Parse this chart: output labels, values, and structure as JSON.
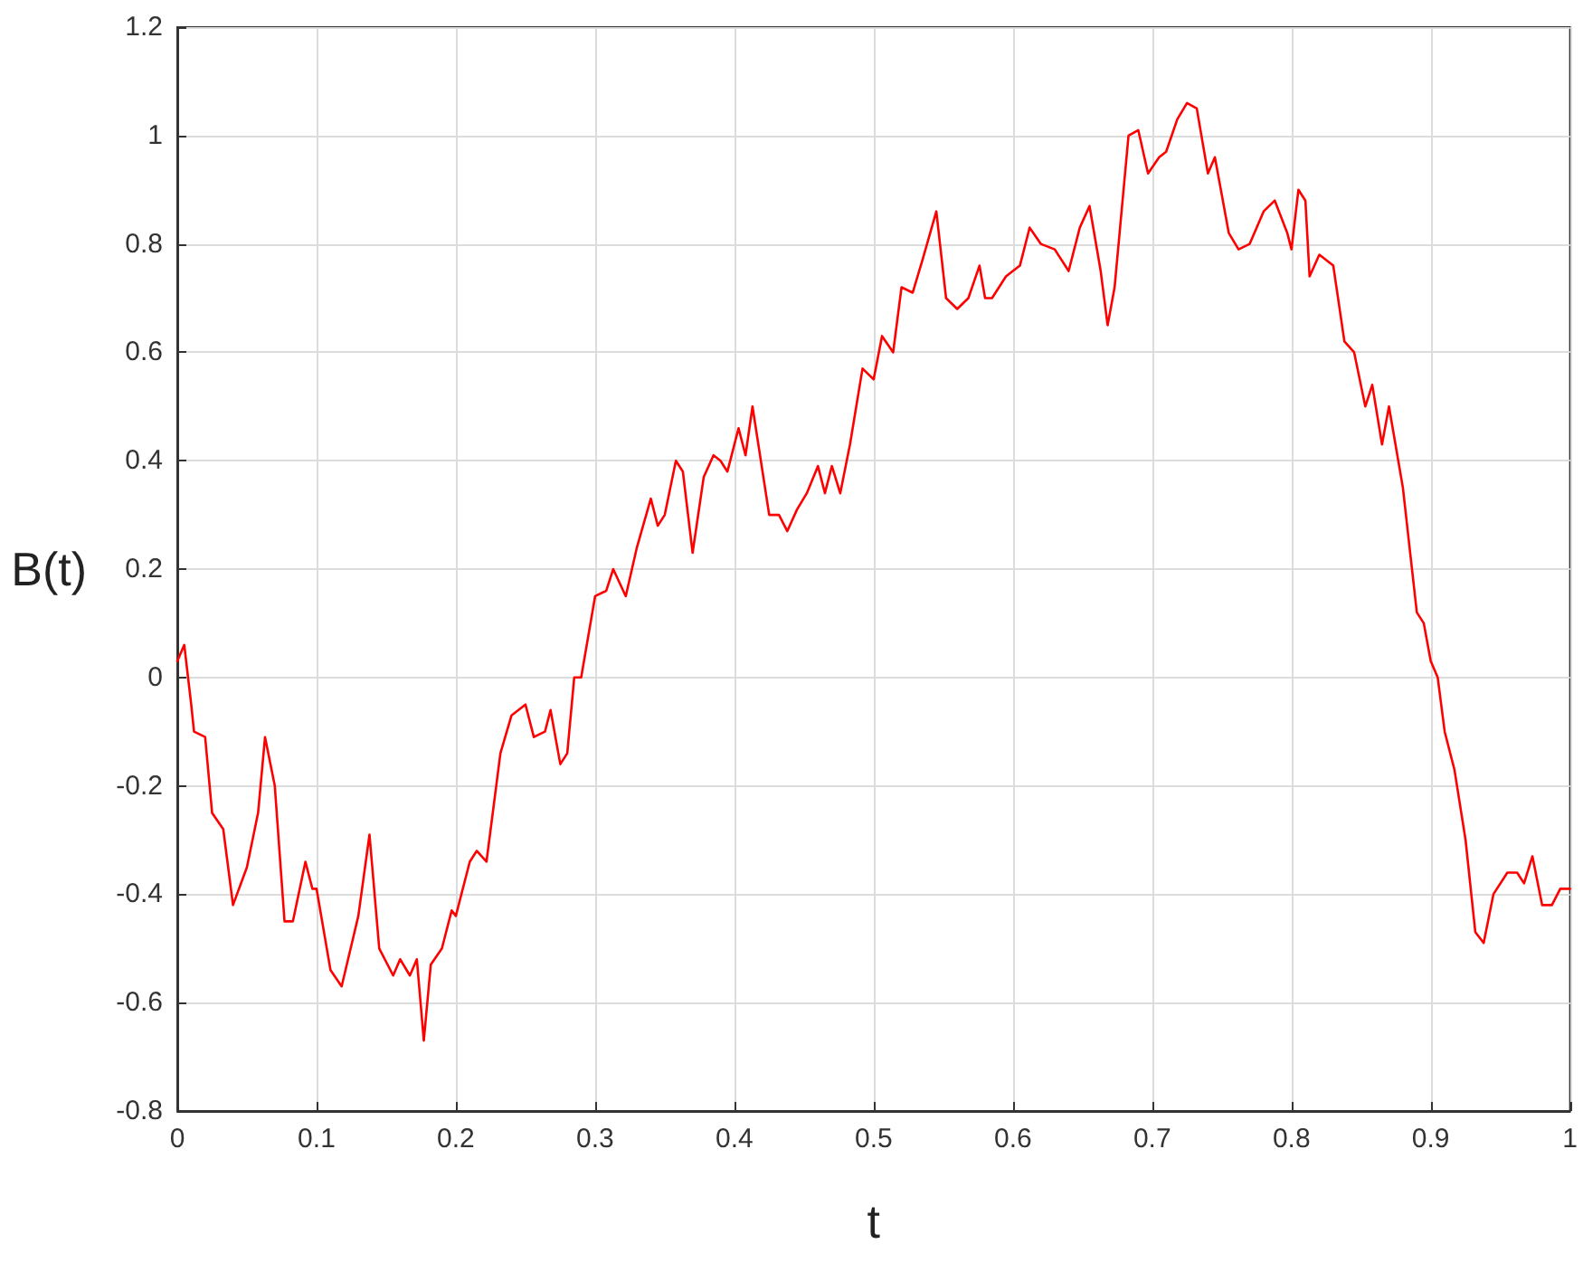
{
  "chart_data": {
    "type": "line",
    "xlabel": "t",
    "ylabel": "B(t)",
    "grid": true,
    "marker": "none",
    "line_style": "solid",
    "xlim": [
      0,
      1
    ],
    "ylim": [
      -0.8,
      1.2
    ],
    "xticks": [
      0,
      0.1,
      0.2,
      0.3,
      0.4,
      0.5,
      0.6,
      0.7,
      0.8,
      0.9,
      1
    ],
    "yticks": [
      -0.8,
      -0.6,
      -0.4,
      -0.2,
      0,
      0.2,
      0.4,
      0.6,
      0.8,
      1,
      1.2
    ],
    "series": [
      {
        "color": "#ff0000",
        "x": [
          0,
          0.005,
          0.01,
          0.012,
          0.02,
          0.025,
          0.033,
          0.04,
          0.05,
          0.058,
          0.063,
          0.07,
          0.077,
          0.083,
          0.092,
          0.097,
          0.1,
          0.11,
          0.118,
          0.13,
          0.138,
          0.145,
          0.155,
          0.16,
          0.167,
          0.172,
          0.177,
          0.182,
          0.19,
          0.197,
          0.2,
          0.21,
          0.215,
          0.222,
          0.232,
          0.24,
          0.25,
          0.256,
          0.264,
          0.268,
          0.275,
          0.28,
          0.285,
          0.29,
          0.3,
          0.308,
          0.313,
          0.322,
          0.33,
          0.34,
          0.345,
          0.35,
          0.358,
          0.363,
          0.37,
          0.378,
          0.385,
          0.39,
          0.395,
          0.403,
          0.408,
          0.413,
          0.425,
          0.432,
          0.438,
          0.445,
          0.452,
          0.46,
          0.465,
          0.47,
          0.476,
          0.483,
          0.492,
          0.5,
          0.506,
          0.514,
          0.52,
          0.528,
          0.535,
          0.545,
          0.552,
          0.56,
          0.568,
          0.576,
          0.58,
          0.585,
          0.595,
          0.605,
          0.612,
          0.62,
          0.63,
          0.64,
          0.648,
          0.655,
          0.663,
          0.668,
          0.673,
          0.683,
          0.69,
          0.697,
          0.705,
          0.71,
          0.718,
          0.725,
          0.732,
          0.74,
          0.745,
          0.755,
          0.762,
          0.77,
          0.78,
          0.788,
          0.797,
          0.8,
          0.805,
          0.81,
          0.813,
          0.82,
          0.83,
          0.838,
          0.845,
          0.853,
          0.858,
          0.865,
          0.87,
          0.88,
          0.89,
          0.895,
          0.9,
          0.905,
          0.91,
          0.917,
          0.925,
          0.932,
          0.938,
          0.945,
          0.955,
          0.962,
          0.967,
          0.973,
          0.98,
          0.987,
          0.993,
          1
        ],
        "values": [
          0.03,
          0.06,
          -0.05,
          -0.1,
          -0.11,
          -0.25,
          -0.28,
          -0.42,
          -0.35,
          -0.25,
          -0.11,
          -0.2,
          -0.45,
          -0.45,
          -0.34,
          -0.39,
          -0.39,
          -0.54,
          -0.57,
          -0.44,
          -0.29,
          -0.5,
          -0.55,
          -0.52,
          -0.55,
          -0.52,
          -0.67,
          -0.53,
          -0.5,
          -0.43,
          -0.44,
          -0.34,
          -0.32,
          -0.34,
          -0.14,
          -0.07,
          -0.05,
          -0.11,
          -0.1,
          -0.06,
          -0.16,
          -0.14,
          0,
          0,
          0.15,
          0.16,
          0.2,
          0.15,
          0.24,
          0.33,
          0.28,
          0.3,
          0.4,
          0.38,
          0.23,
          0.37,
          0.41,
          0.4,
          0.38,
          0.46,
          0.41,
          0.5,
          0.3,
          0.3,
          0.27,
          0.31,
          0.34,
          0.39,
          0.34,
          0.39,
          0.34,
          0.43,
          0.57,
          0.55,
          0.63,
          0.6,
          0.72,
          0.71,
          0.77,
          0.86,
          0.7,
          0.68,
          0.7,
          0.76,
          0.7,
          0.7,
          0.74,
          0.76,
          0.83,
          0.8,
          0.79,
          0.75,
          0.83,
          0.87,
          0.75,
          0.65,
          0.72,
          1,
          1.01,
          0.93,
          0.96,
          0.97,
          1.03,
          1.06,
          1.05,
          0.93,
          0.96,
          0.82,
          0.79,
          0.8,
          0.86,
          0.88,
          0.82,
          0.79,
          0.9,
          0.88,
          0.74,
          0.78,
          0.76,
          0.62,
          0.6,
          0.5,
          0.54,
          0.43,
          0.5,
          0.35,
          0.12,
          0.1,
          0.03,
          0,
          -0.1,
          -0.17,
          -0.3,
          -0.47,
          -0.49,
          -0.4,
          -0.36,
          -0.36,
          -0.38,
          -0.33,
          -0.42,
          -0.42,
          -0.39,
          -0.39
        ]
      }
    ]
  }
}
